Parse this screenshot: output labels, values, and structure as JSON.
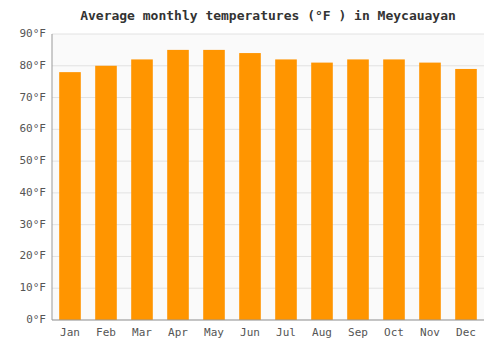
{
  "chart_data": {
    "type": "bar",
    "title": "Average monthly temperatures (°F ) in Meycauayan",
    "categories": [
      "Jan",
      "Feb",
      "Mar",
      "Apr",
      "May",
      "Jun",
      "Jul",
      "Aug",
      "Sep",
      "Oct",
      "Nov",
      "Dec"
    ],
    "values": [
      78,
      80,
      82,
      85,
      85,
      84,
      82,
      81,
      82,
      82,
      81,
      79
    ],
    "color": "#FF9500",
    "ylim": [
      0,
      90
    ],
    "yticks": [
      {
        "value": 0,
        "label": "0°F"
      },
      {
        "value": 10,
        "label": "10°F"
      },
      {
        "value": 20,
        "label": "20°F"
      },
      {
        "value": 30,
        "label": "30°F"
      },
      {
        "value": 40,
        "label": "40°F"
      },
      {
        "value": 50,
        "label": "50°F"
      },
      {
        "value": 60,
        "label": "60°F"
      },
      {
        "value": 70,
        "label": "70°F"
      },
      {
        "value": 80,
        "label": "80°F"
      },
      {
        "value": 90,
        "label": "90°F"
      }
    ],
    "grid": true
  }
}
